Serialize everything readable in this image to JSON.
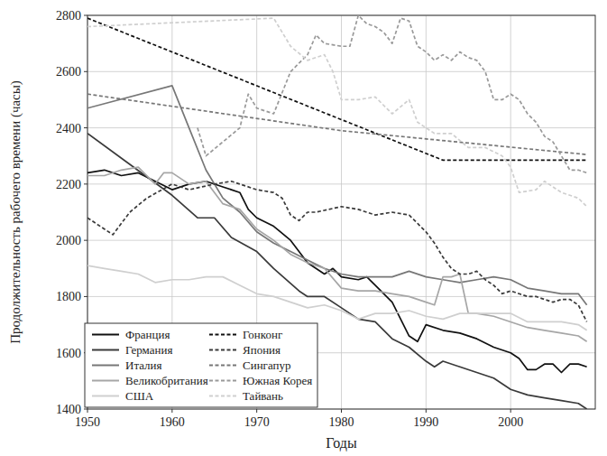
{
  "chart_data": {
    "type": "line",
    "x_label": "Годы",
    "y_label": "Продолжительность рабочего времени (часы)",
    "xlim": [
      1950,
      2010
    ],
    "xticks": [
      1950,
      1960,
      1970,
      1980,
      1990,
      2000
    ],
    "ylim": [
      1400,
      2800
    ],
    "yticks": [
      1400,
      1600,
      1800,
      2000,
      2200,
      2400,
      2600,
      2800
    ],
    "grid": true,
    "legend": "bottom-left",
    "series": [
      {
        "name": "Франция",
        "color": "#111111",
        "line_style": "solid",
        "x": [
          1950,
          1952,
          1954,
          1956,
          1958,
          1960,
          1962,
          1964,
          1966,
          1968,
          1969,
          1970,
          1972,
          1974,
          1976,
          1978,
          1979,
          1980,
          1982,
          1983,
          1984,
          1986,
          1988,
          1989,
          1990,
          1992,
          1994,
          1996,
          1998,
          2000,
          2001,
          2002,
          2003,
          2004,
          2005,
          2006,
          2007,
          2008,
          2009
        ],
        "values": [
          2240,
          2250,
          2230,
          2240,
          2210,
          2180,
          2200,
          2210,
          2190,
          2170,
          2110,
          2080,
          2050,
          2000,
          1920,
          1880,
          1900,
          1870,
          1860,
          1870,
          1840,
          1780,
          1660,
          1640,
          1700,
          1680,
          1670,
          1650,
          1620,
          1600,
          1580,
          1540,
          1540,
          1560,
          1560,
          1530,
          1560,
          1560,
          1550
        ]
      },
      {
        "name": "Германия",
        "color": "#3a3a3a",
        "line_style": "solid",
        "x": [
          1950,
          1955,
          1960,
          1963,
          1965,
          1967,
          1970,
          1972,
          1975,
          1976,
          1978,
          1980,
          1982,
          1984,
          1986,
          1988,
          1990,
          1991,
          1992,
          1994,
          1996,
          1998,
          2000,
          2002,
          2004,
          2006,
          2008,
          2009
        ],
        "values": [
          2380,
          2270,
          2160,
          2080,
          2080,
          2010,
          1960,
          1900,
          1820,
          1800,
          1800,
          1760,
          1720,
          1710,
          1650,
          1620,
          1570,
          1550,
          1570,
          1550,
          1530,
          1510,
          1470,
          1450,
          1440,
          1430,
          1420,
          1400
        ]
      },
      {
        "name": "Италия",
        "color": "#777777",
        "line_style": "solid",
        "x": [
          1950,
          1960,
          1962,
          1964,
          1966,
          1968,
          1970,
          1972,
          1974,
          1976,
          1978,
          1980,
          1982,
          1984,
          1986,
          1988,
          1990,
          1992,
          1994,
          1996,
          1998,
          2000,
          2002,
          2004,
          2006,
          2008,
          2009
        ],
        "values": [
          2470,
          2550,
          2400,
          2250,
          2150,
          2100,
          2030,
          1990,
          1960,
          1930,
          1900,
          1880,
          1870,
          1870,
          1870,
          1890,
          1870,
          1860,
          1850,
          1860,
          1870,
          1860,
          1830,
          1820,
          1810,
          1810,
          1770
        ]
      },
      {
        "name": "Великобритания",
        "color": "#a6a6a6",
        "line_style": "solid",
        "x": [
          1950,
          1952,
          1954,
          1956,
          1958,
          1959,
          1960,
          1962,
          1964,
          1966,
          1968,
          1970,
          1972,
          1974,
          1976,
          1978,
          1980,
          1982,
          1984,
          1986,
          1988,
          1990,
          1991,
          1992,
          1993,
          1994,
          1995,
          1996,
          1998,
          2000,
          2002,
          2004,
          2006,
          2008,
          2009
        ],
        "values": [
          2230,
          2230,
          2250,
          2260,
          2200,
          2240,
          2240,
          2200,
          2210,
          2130,
          2110,
          2040,
          2000,
          1950,
          1920,
          1900,
          1830,
          1820,
          1820,
          1810,
          1800,
          1780,
          1770,
          1870,
          1870,
          1880,
          1740,
          1740,
          1730,
          1710,
          1690,
          1680,
          1670,
          1660,
          1640
        ]
      },
      {
        "name": "США",
        "color": "#cfcfcf",
        "line_style": "solid",
        "x": [
          1950,
          1952,
          1954,
          1956,
          1958,
          1960,
          1962,
          1964,
          1966,
          1968,
          1970,
          1972,
          1974,
          1976,
          1978,
          1980,
          1982,
          1984,
          1986,
          1988,
          1990,
          1992,
          1994,
          1996,
          1998,
          2000,
          2002,
          2004,
          2006,
          2008,
          2009
        ],
        "values": [
          1910,
          1900,
          1890,
          1880,
          1850,
          1860,
          1860,
          1870,
          1870,
          1840,
          1810,
          1800,
          1780,
          1760,
          1770,
          1750,
          1720,
          1740,
          1740,
          1750,
          1730,
          1720,
          1740,
          1740,
          1740,
          1740,
          1710,
          1710,
          1710,
          1700,
          1680
        ]
      },
      {
        "name": "Гонконг",
        "color": "#111111",
        "line_style": "dashed",
        "x": [
          1950,
          1992,
          2009
        ],
        "values": [
          2790,
          2285,
          2285
        ]
      },
      {
        "name": "Япония",
        "color": "#3a3a3a",
        "line_style": "dashed",
        "x": [
          1950,
          1953,
          1955,
          1957,
          1960,
          1962,
          1965,
          1967,
          1968,
          1970,
          1972,
          1973,
          1974,
          1975,
          1976,
          1977,
          1980,
          1982,
          1984,
          1986,
          1988,
          1989,
          1990,
          1991,
          1992,
          1993,
          1994,
          1995,
          1996,
          1997,
          1998,
          1999,
          2000,
          2001,
          2002,
          2003,
          2004,
          2005,
          2006,
          2007,
          2008,
          2009
        ],
        "values": [
          2080,
          2020,
          2100,
          2150,
          2200,
          2180,
          2200,
          2210,
          2200,
          2180,
          2170,
          2150,
          2090,
          2070,
          2100,
          2100,
          2120,
          2110,
          2090,
          2100,
          2090,
          2060,
          2030,
          1990,
          1940,
          1900,
          1880,
          1880,
          1890,
          1860,
          1840,
          1810,
          1820,
          1810,
          1800,
          1800,
          1790,
          1780,
          1790,
          1790,
          1770,
          1710
        ]
      },
      {
        "name": "Сингапур",
        "color": "#777777",
        "line_style": "dashed",
        "x": [
          1950,
          1980,
          2009
        ],
        "values": [
          2520,
          2390,
          2305
        ]
      },
      {
        "name": "Южная Корея",
        "color": "#999999",
        "line_style": "dashed",
        "x": [
          1963,
          1964,
          1966,
          1968,
          1969,
          1970,
          1972,
          1974,
          1976,
          1977,
          1978,
          1980,
          1981,
          1982,
          1983,
          1984,
          1985,
          1986,
          1987,
          1988,
          1989,
          1990,
          1991,
          1992,
          1993,
          1994,
          1995,
          1996,
          1997,
          1998,
          1999,
          2000,
          2001,
          2002,
          2003,
          2004,
          2005,
          2006,
          2007,
          2008,
          2009
        ],
        "values": [
          2400,
          2300,
          2350,
          2400,
          2520,
          2470,
          2450,
          2600,
          2660,
          2730,
          2700,
          2690,
          2690,
          2800,
          2770,
          2760,
          2740,
          2700,
          2790,
          2780,
          2690,
          2670,
          2640,
          2660,
          2640,
          2670,
          2650,
          2640,
          2600,
          2500,
          2500,
          2520,
          2500,
          2450,
          2420,
          2370,
          2350,
          2300,
          2250,
          2250,
          2240
        ]
      },
      {
        "name": "Тайвань",
        "color": "#cfcfcf",
        "line_style": "dashed",
        "x": [
          1950,
          1972,
          1974,
          1976,
          1978,
          1979,
          1980,
          1982,
          1984,
          1986,
          1988,
          1989,
          1991,
          1993,
          1995,
          1997,
          1999,
          2000,
          2001,
          2003,
          2004,
          2006,
          2008,
          2009
        ],
        "values": [
          2760,
          2790,
          2690,
          2640,
          2660,
          2600,
          2500,
          2500,
          2510,
          2450,
          2500,
          2420,
          2380,
          2380,
          2330,
          2330,
          2300,
          2260,
          2170,
          2180,
          2210,
          2170,
          2150,
          2120
        ]
      }
    ]
  }
}
